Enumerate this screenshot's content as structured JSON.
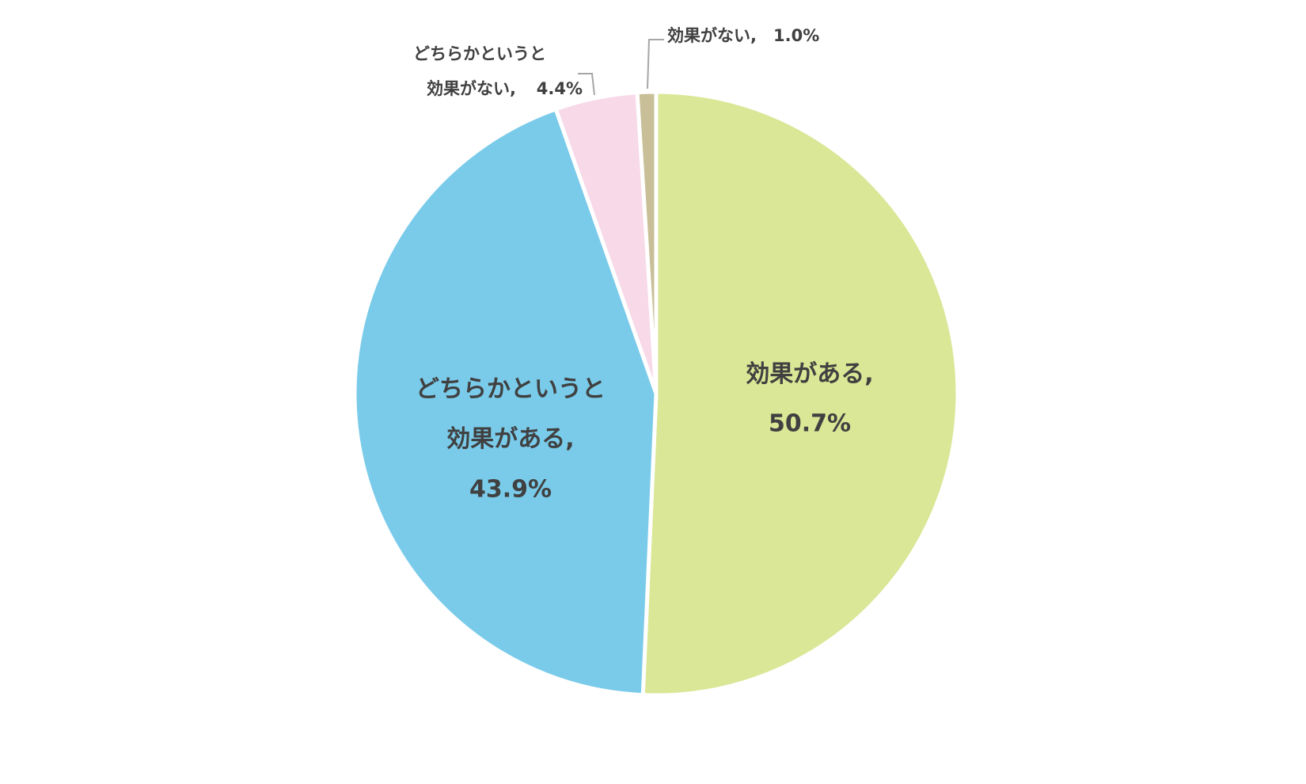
{
  "chart_data": {
    "type": "pie",
    "categories": [
      "効果がある,",
      "どちらかというと効果がある,",
      "どちらかというと効果がない,",
      "効果がない,"
    ],
    "values": [
      50.7,
      43.9,
      4.4,
      1.0
    ],
    "value_labels": [
      "50.7%",
      "43.9%",
      "4.4%",
      "1.0%"
    ],
    "colors": [
      "#d9e796",
      "#7acbea",
      "#f8d9e8",
      "#c8bf98"
    ]
  }
}
